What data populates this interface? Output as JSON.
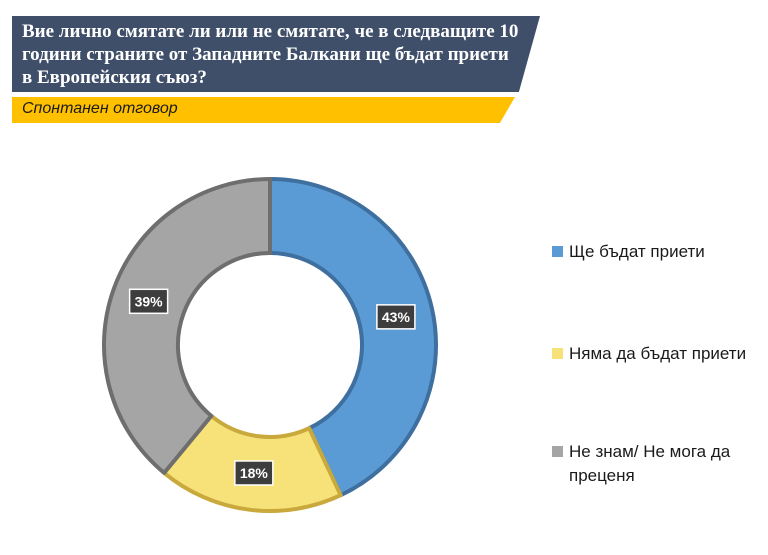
{
  "header": {
    "title": "Вие лично смятате ли или не смятате, че в следващите 10 години страните от Западните Балкани ще бъдат приети в Европейския съюз?",
    "subtitle": "Спонтанен отговор"
  },
  "colors": {
    "title_bg": "#3f4f6a",
    "subtitle_bg": "#ffc000"
  },
  "chart_data": {
    "type": "pie",
    "variant": "donut",
    "title": "",
    "legend_position": "right",
    "data_labels": [
      "43%",
      "18%",
      "39%"
    ],
    "slices": [
      {
        "name": "Ще бъдат приети",
        "value": 43,
        "color": "#5b9bd5"
      },
      {
        "name": "Няма да бъдат приети",
        "value": 18,
        "color": "#f7e27a"
      },
      {
        "name": "Не знам/ Не мога да преценя",
        "value": 39,
        "color": "#a5a5a5"
      }
    ]
  }
}
